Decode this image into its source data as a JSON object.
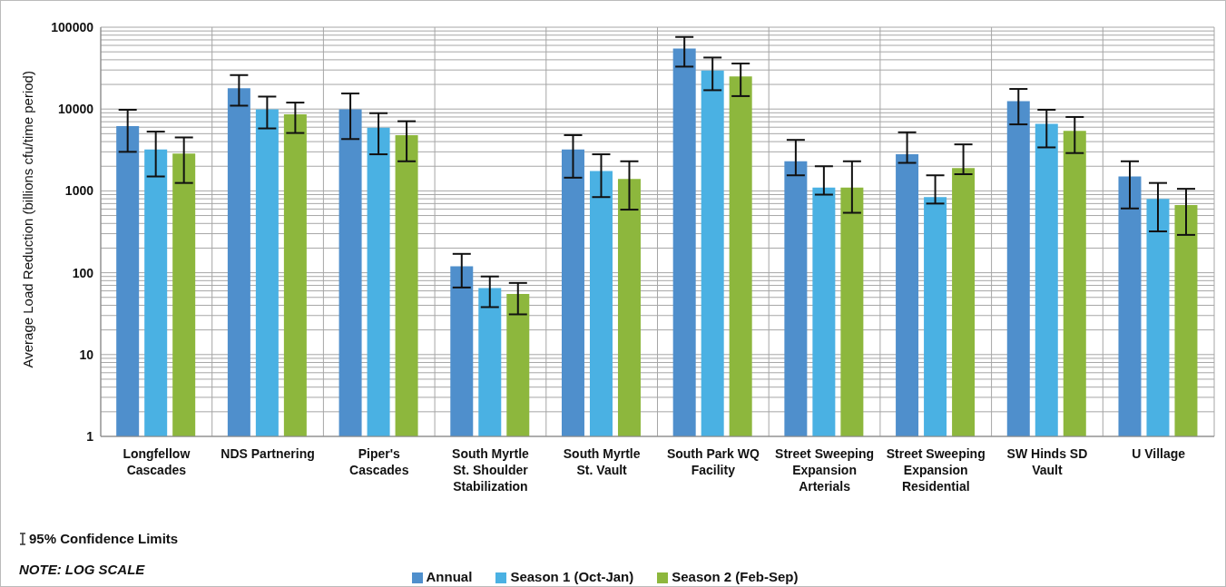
{
  "chart_data": {
    "type": "bar",
    "ylabel": "Average Load Reduction (billions  cfu/time period)",
    "categories": [
      "Longfellow Cascades",
      "NDS Partnering",
      "Piper's Cascades",
      "South Myrtle St. Shoulder Stabilization",
      "South Myrtle St. Vault",
      "South Park WQ Facility",
      "Street Sweeping Expansion Arterials",
      "Street Sweeping Expansion Residential",
      "SW Hinds SD Vault",
      "U Village"
    ],
    "series": [
      {
        "name": "Annual",
        "color": "#4f8fcc",
        "values": [
          6200,
          18000,
          9900,
          120,
          3200,
          55000,
          2300,
          2800,
          12500,
          1500
        ],
        "errors": [
          [
            3000,
            9800
          ],
          [
            11000,
            26000
          ],
          [
            4300,
            15500
          ],
          [
            66,
            170
          ],
          [
            1450,
            4800
          ],
          [
            33000,
            76000
          ],
          [
            1550,
            4200
          ],
          [
            2200,
            5200
          ],
          [
            6500,
            17600
          ],
          [
            610,
            2300
          ]
        ]
      },
      {
        "name": "Season 1 (Oct-Jan)",
        "color": "#4ab1e3",
        "values": [
          3200,
          9900,
          5900,
          65,
          1750,
          29500,
          1100,
          840,
          6600,
          800
        ],
        "errors": [
          [
            1500,
            5300
          ],
          [
            5800,
            14200
          ],
          [
            2800,
            8900
          ],
          [
            38,
            90
          ],
          [
            840,
            2800
          ],
          [
            17000,
            42600
          ],
          [
            900,
            2000
          ],
          [
            700,
            1550
          ],
          [
            3400,
            9800
          ],
          [
            320,
            1250
          ]
        ]
      },
      {
        "name": "Season 2 (Feb-Sep)",
        "color": "#8db73d",
        "values": [
          2850,
          8600,
          4800,
          55,
          1400,
          25000,
          1100,
          1900,
          5400,
          670
        ],
        "errors": [
          [
            1250,
            4500
          ],
          [
            5100,
            12000
          ],
          [
            2300,
            7100
          ],
          [
            31,
            75
          ],
          [
            590,
            2300
          ],
          [
            14400,
            36000
          ],
          [
            540,
            2300
          ],
          [
            1600,
            3700
          ],
          [
            2900,
            8000
          ],
          [
            290,
            1060
          ]
        ]
      }
    ],
    "log": "y",
    "ylim": [
      1,
      100000
    ],
    "yticks": [
      1,
      {
        "value": 2,
        "label": null
      },
      {
        "value": 3,
        "label": null
      },
      {
        "value": 4,
        "label": null
      },
      {
        "value": 5,
        "label": null
      },
      {
        "value": 6,
        "label": null
      },
      {
        "value": 7,
        "label": null
      },
      {
        "value": 8,
        "label": null
      },
      {
        "value": 9,
        "label": null
      },
      10,
      {
        "value": 20,
        "label": null
      },
      {
        "value": 30,
        "label": null
      },
      {
        "value": 40,
        "label": null
      },
      {
        "value": 50,
        "label": null
      },
      {
        "value": 60,
        "label": null
      },
      {
        "value": 70,
        "label": null
      },
      {
        "value": 80,
        "label": null
      },
      {
        "value": 90,
        "label": null
      },
      100,
      {
        "value": 200,
        "label": null
      },
      {
        "value": 300,
        "label": null
      },
      {
        "value": 400,
        "label": null
      },
      {
        "value": 500,
        "label": null
      },
      {
        "value": 600,
        "label": null
      },
      {
        "value": 700,
        "label": null
      },
      {
        "value": 800,
        "label": null
      },
      {
        "value": 900,
        "label": null
      },
      1000,
      {
        "value": 2000,
        "label": null
      },
      {
        "value": 3000,
        "label": null
      },
      {
        "value": 4000,
        "label": null
      },
      {
        "value": 5000,
        "label": null
      },
      {
        "value": 6000,
        "label": null
      },
      {
        "value": 7000,
        "label": null
      },
      {
        "value": 8000,
        "label": null
      },
      {
        "value": 9000,
        "label": null
      },
      10000,
      {
        "value": 20000,
        "label": null
      },
      {
        "value": 30000,
        "label": null
      },
      {
        "value": 40000,
        "label": null
      },
      {
        "value": 50000,
        "label": null
      },
      {
        "value": 60000,
        "label": null
      },
      {
        "value": 70000,
        "label": null
      },
      {
        "value": 80000,
        "label": null
      },
      {
        "value": 90000,
        "label": null
      },
      100000
    ],
    "grid": true,
    "legend": "bottom",
    "annotations": [
      "95% Confidence Limits",
      "NOTE: LOG SCALE"
    ]
  }
}
